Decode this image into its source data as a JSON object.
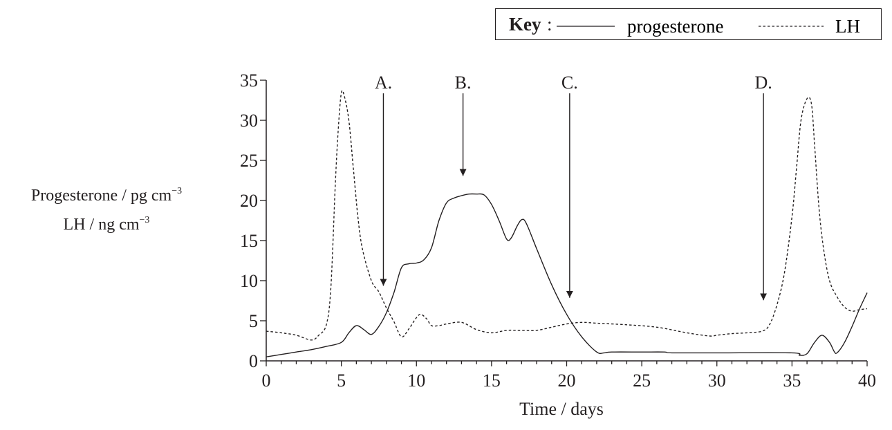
{
  "key": {
    "title": "Key",
    "colon": ":",
    "series1": "progesterone",
    "series2": "LH"
  },
  "ylabel": {
    "line1": "Progesterone / pg cm",
    "line1_exp": "−3",
    "line2": "LH / ng cm",
    "line2_exp": "−3"
  },
  "chart_data": {
    "type": "line",
    "xlabel": "Time / days",
    "ylabel": "Progesterone / pg cm−3  LH / ng cm−3",
    "xlim": [
      0,
      40
    ],
    "ylim": [
      0,
      35
    ],
    "xticks": [
      0,
      5,
      10,
      15,
      20,
      25,
      30,
      35,
      40
    ],
    "yticks": [
      0,
      5,
      10,
      15,
      20,
      25,
      30,
      35
    ],
    "grid": false,
    "legend_position": "top-right",
    "series": [
      {
        "name": "progesterone",
        "style": "solid",
        "color": "#231f20",
        "x": [
          0,
          1,
          2,
          3,
          4,
          5,
          5.5,
          6,
          6.5,
          7,
          7.5,
          8,
          8.5,
          9,
          9.5,
          10,
          10.5,
          11,
          11.5,
          12,
          12.5,
          13,
          13.5,
          14,
          14.5,
          15,
          15.5,
          16,
          16.3,
          16.7,
          17,
          17.3,
          18,
          19,
          20,
          21,
          22,
          22.5,
          23,
          25,
          26.5,
          27,
          30,
          35,
          35.5,
          36,
          36.5,
          37,
          37.5,
          37.8,
          38,
          38.5,
          39,
          39.5,
          40
        ],
        "y": [
          0.5,
          0.8,
          1.1,
          1.4,
          1.8,
          2.3,
          3.5,
          4.4,
          3.9,
          3.3,
          4.3,
          6.0,
          8.5,
          11.6,
          12.1,
          12.2,
          12.6,
          14.1,
          17.5,
          19.7,
          20.3,
          20.6,
          20.8,
          20.8,
          20.7,
          19.5,
          17.5,
          15.2,
          15.3,
          16.8,
          17.6,
          17.2,
          14.0,
          9.5,
          5.8,
          3.0,
          1.1,
          1.0,
          1.1,
          1.1,
          1.1,
          1.0,
          1.0,
          1.0,
          0.7,
          0.9,
          2.3,
          3.2,
          2.3,
          1.2,
          1.0,
          2.3,
          4.3,
          6.5,
          8.5
        ]
      },
      {
        "name": "LH",
        "style": "dashed",
        "color": "#231f20",
        "x": [
          0,
          1,
          2,
          3,
          3.5,
          4,
          4.3,
          4.6,
          4.8,
          5,
          5.2,
          5.5,
          5.8,
          6.1,
          6.4,
          7,
          7.5,
          8,
          8.5,
          9,
          9.5,
          10,
          10.3,
          10.7,
          11,
          11.5,
          12,
          13,
          14,
          15,
          16,
          17,
          18,
          19,
          20,
          21,
          22,
          24,
          26,
          28,
          29.5,
          30,
          31,
          32,
          33,
          33.5,
          34,
          34.5,
          35,
          35.3,
          35.6,
          36,
          36.3,
          36.5,
          36.8,
          37.1,
          37.5,
          38,
          38.5,
          39,
          39.5,
          40
        ],
        "y": [
          3.7,
          3.5,
          3.2,
          2.6,
          3.2,
          4.5,
          9.0,
          22.0,
          29.0,
          33.4,
          33.0,
          30.0,
          24.0,
          18.0,
          14.0,
          10.0,
          8.6,
          6.6,
          4.9,
          3.0,
          4.0,
          5.4,
          5.8,
          5.2,
          4.4,
          4.4,
          4.6,
          4.8,
          3.9,
          3.5,
          3.8,
          3.8,
          3.8,
          4.2,
          4.6,
          4.8,
          4.7,
          4.5,
          4.2,
          3.5,
          3.1,
          3.2,
          3.4,
          3.5,
          3.7,
          4.5,
          7.0,
          11.0,
          18.0,
          24.0,
          30.0,
          32.7,
          32.0,
          27.0,
          19.0,
          14.0,
          10.0,
          8.0,
          6.7,
          6.2,
          6.4,
          6.5
        ]
      }
    ],
    "annotations": [
      {
        "label": "A.",
        "x": 7.8,
        "y": 35,
        "arrow_to": 8.5
      },
      {
        "label": "B.",
        "x": 13.1,
        "y": 35,
        "arrow_to": 22.2
      },
      {
        "label": "C.",
        "x": 20.2,
        "y": 35,
        "arrow_to": 7.0
      },
      {
        "label": "D.",
        "x": 33.1,
        "y": 35,
        "arrow_to": 6.7
      }
    ]
  }
}
